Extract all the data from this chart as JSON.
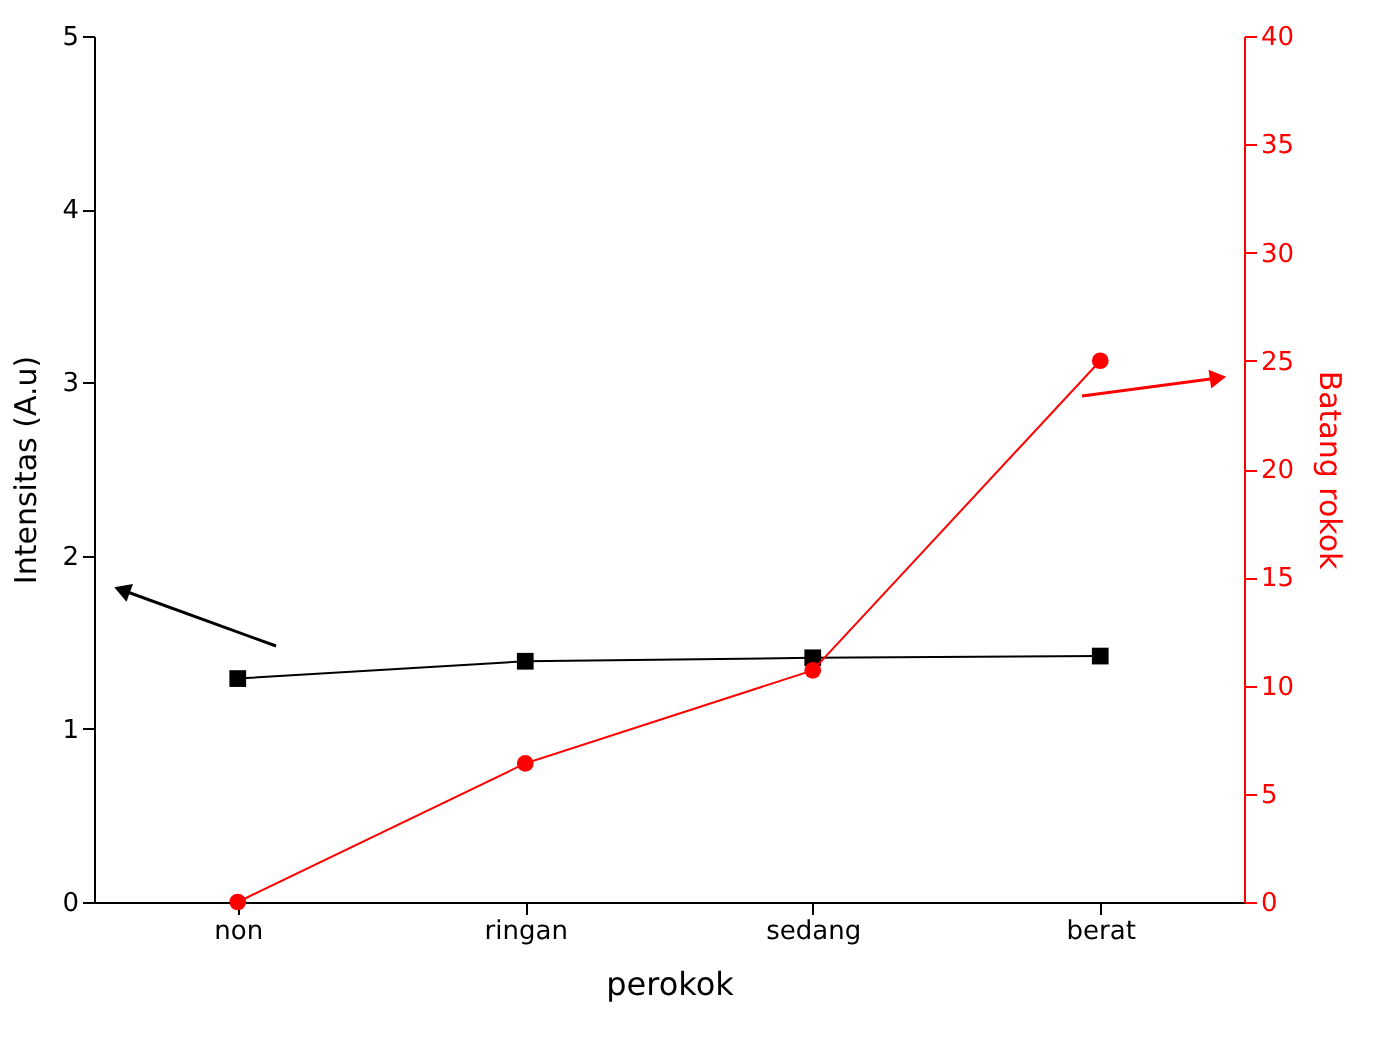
{
  "chart_data": {
    "type": "line",
    "xlabel": "perokok",
    "ylabel": "Intensitas (A.u)",
    "y2label": "Batang rokok",
    "categories": [
      "non",
      "ringan",
      "sedang",
      "berat"
    ],
    "series": [
      {
        "color": "#000000",
        "marker": "square",
        "values": [
          1.29,
          1.39,
          1.41,
          1.42
        ]
      },
      {
        "color": "#ff0000",
        "marker": "circle",
        "axis": "y2",
        "values": [
          0,
          6.4,
          10.7,
          25
        ]
      }
    ],
    "ylim": [
      0,
      5
    ],
    "yticks": [
      0,
      1,
      2,
      3,
      4,
      5
    ],
    "y2lim": [
      0,
      40
    ],
    "y2ticks": [
      0,
      5,
      10,
      15,
      20,
      25,
      30,
      35,
      40
    ],
    "grid": false,
    "line_style": "solid"
  }
}
